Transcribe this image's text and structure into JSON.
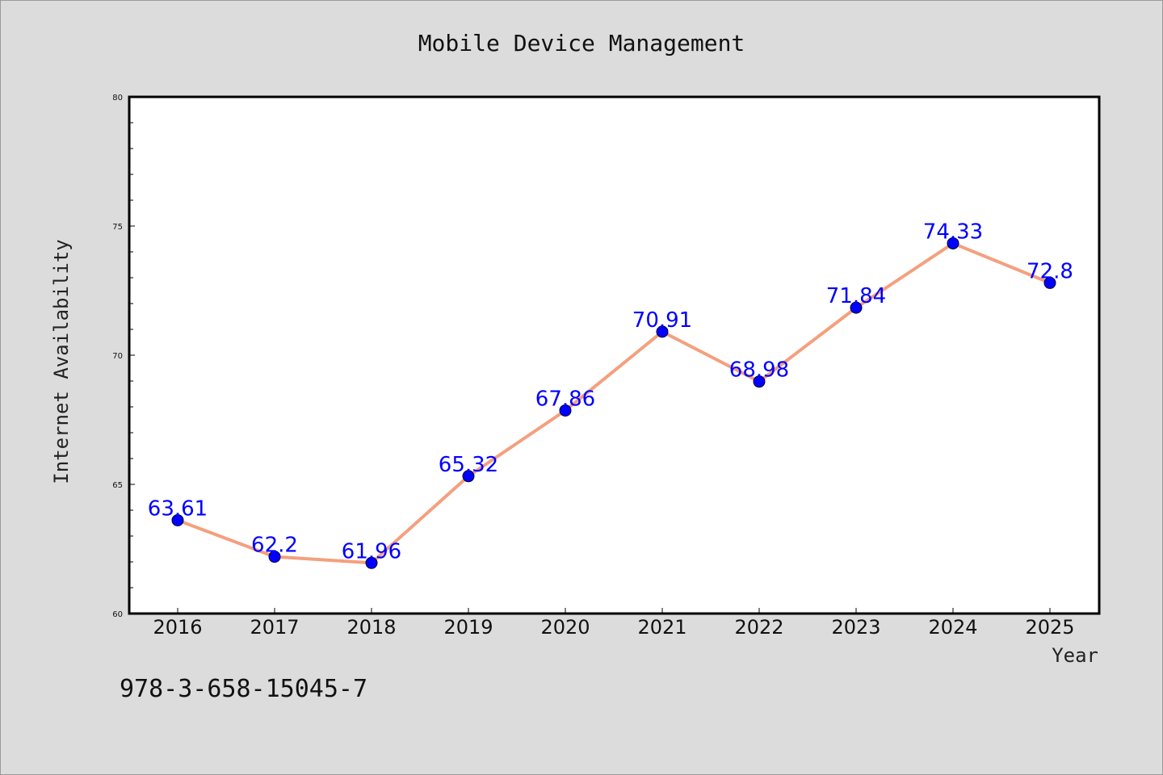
{
  "chart_data": {
    "type": "line",
    "title": "Mobile Device Management",
    "xlabel": "Year",
    "ylabel": "Internet Availability",
    "categories": [
      "2016",
      "2017",
      "2018",
      "2019",
      "2020",
      "2021",
      "2022",
      "2023",
      "2024",
      "2025"
    ],
    "values": [
      63.61,
      62.2,
      61.96,
      65.32,
      67.86,
      70.91,
      68.98,
      71.84,
      74.33,
      72.8
    ],
    "data_labels": [
      "63.61",
      "62.2",
      "61.96",
      "65.32",
      "67.86",
      "70.91",
      "68.98",
      "71.84",
      "74.33",
      "72.8"
    ],
    "ylim": [
      60,
      80
    ],
    "yticks": [
      "60",
      "65",
      "70",
      "75",
      "80"
    ],
    "grid": false,
    "line_color": "#f4a07e",
    "marker_color": "#0000ff",
    "label_color": "#0000ff"
  },
  "annotation": "978-3-658-15045-7"
}
